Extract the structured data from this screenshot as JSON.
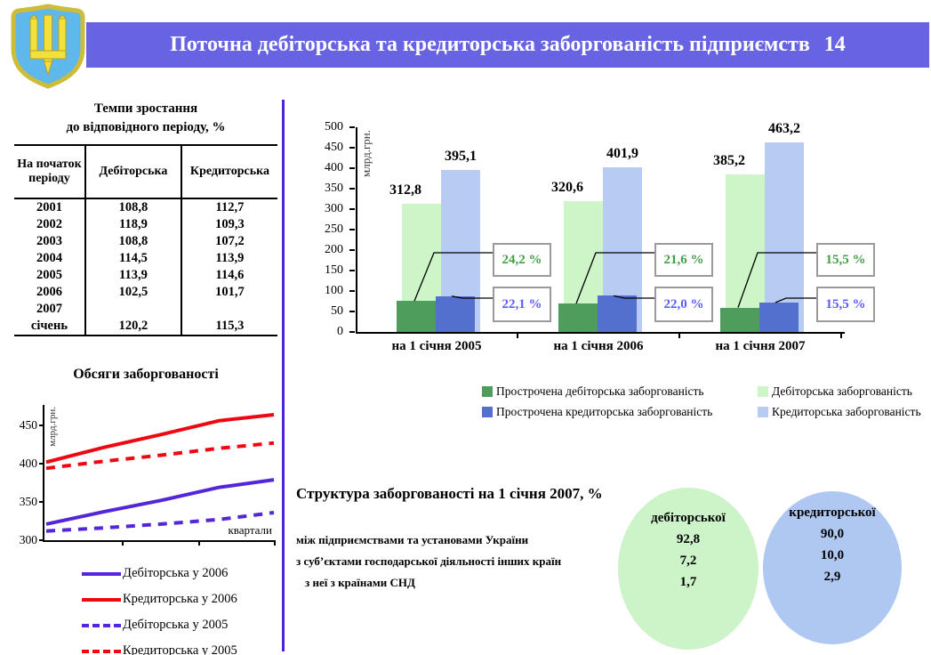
{
  "header": {
    "title": "Поточна дебіторська та кредиторська заборгованість підприємств",
    "page_number": "14",
    "bar_color": "#6763E3"
  },
  "emblem": {
    "name": "coat-of-arms-of-ukraine"
  },
  "divider_color": "#4B22DC",
  "growth_table": {
    "title_line1": "Темпи зростання",
    "title_line2": "до відповідного періоду, %",
    "columns": [
      "На початок періоду",
      "Дебіторська",
      "Кредиторська"
    ],
    "rows": [
      {
        "period": "2001",
        "debit": "108,8",
        "credit": "112,7"
      },
      {
        "period": "2002",
        "debit": "118,9",
        "credit": "109,3"
      },
      {
        "period": "2003",
        "debit": "108,8",
        "credit": "107,2"
      },
      {
        "period": "2004",
        "debit": "114,5",
        "credit": "113,9"
      },
      {
        "period": "2005",
        "debit": "113,9",
        "credit": "114,6"
      },
      {
        "period": "2006",
        "debit": "102,5",
        "credit": "101,7"
      },
      {
        "period": "2007",
        "debit": "",
        "credit": ""
      },
      {
        "period": "січень",
        "debit": "120,2",
        "credit": "115,3"
      }
    ]
  },
  "chart_data": [
    {
      "type": "line",
      "title": "Обсяги заборгованості",
      "ylabel": "млрд.грн.",
      "xlabel": "квартали",
      "ylim": [
        300,
        476
      ],
      "yticks": [
        300,
        350,
        400,
        450
      ],
      "grid": false,
      "legend_position": "bottom",
      "x_units": "quarters (5 points per year)",
      "series": [
        {
          "name": "Дебіторська у 2006",
          "color": "#5426D8",
          "style": "solid",
          "values": [
            321,
            337,
            352,
            369,
            379
          ]
        },
        {
          "name": "Кредиторська у 2006",
          "color": "#EE0814",
          "style": "solid",
          "values": [
            402,
            421,
            438,
            456,
            464
          ]
        },
        {
          "name": "Дебіторська у 2005",
          "color": "#5426D8",
          "style": "dashed",
          "values": [
            312,
            316,
            321,
            327,
            336
          ]
        },
        {
          "name": "Кредиторська у 2005",
          "color": "#EE0814",
          "style": "dashed",
          "values": [
            394,
            403,
            411,
            420,
            427
          ]
        }
      ]
    },
    {
      "type": "bar",
      "ylabel": "млрд.грн.",
      "ylim": [
        0,
        500
      ],
      "yticks": [
        0,
        50,
        100,
        150,
        200,
        250,
        300,
        350,
        400,
        450,
        500
      ],
      "grid": false,
      "legend_position": "bottom",
      "categories": [
        "на 1 січня 2005",
        "на 1 січня 2006",
        "на 1 січня 2007"
      ],
      "series": [
        {
          "name": "Прострочена дебіторська заборгованість",
          "color": "#4F9D5C",
          "values": [
            75.7,
            69.3,
            59.5
          ],
          "labels": [
            "75,7",
            "69,3",
            "59,5"
          ]
        },
        {
          "name": "Дебіторська заборгованість",
          "color": "#CDF5C8",
          "values": [
            312.8,
            320.6,
            385.2
          ],
          "labels": [
            "312,8",
            "320,6",
            "385,2"
          ]
        },
        {
          "name": "Прострочена кредиторська заборгованість",
          "color": "#5470CE",
          "values": [
            87.3,
            88.2,
            71.8
          ],
          "labels": [
            "87,3",
            "88,2",
            "71,8"
          ]
        },
        {
          "name": "Кредиторська заборгованість",
          "color": "#B7CBF3",
          "values": [
            395.1,
            401.9,
            463.2
          ],
          "labels": [
            "395,1",
            "401,9",
            "463,2"
          ]
        }
      ],
      "callouts": {
        "debit_share_labels": [
          "24,2 %",
          "21,6 %",
          "15,5 %"
        ],
        "credit_share_labels": [
          "22,1 %",
          "22,0 %",
          "15,5 %"
        ],
        "debit_text_color": "#44A048",
        "credit_text_color": "#5B5BFF"
      }
    }
  ],
  "structure": {
    "title": "Структура заборгованості на 1 січня 2007, %",
    "rows": [
      "між підприємствами та установами України",
      "з суб’єктами господарської діяльності інших країн",
      "з неї з країнами СНД"
    ],
    "debit": {
      "label": "дебіторської",
      "fill": "#CDF3C8",
      "values": [
        "92,8",
        "7,2",
        "1,7"
      ]
    },
    "credit": {
      "label": "кредиторської",
      "fill": "#AFC8F2",
      "values": [
        "90,0",
        "10,0",
        "2,9"
      ]
    }
  }
}
